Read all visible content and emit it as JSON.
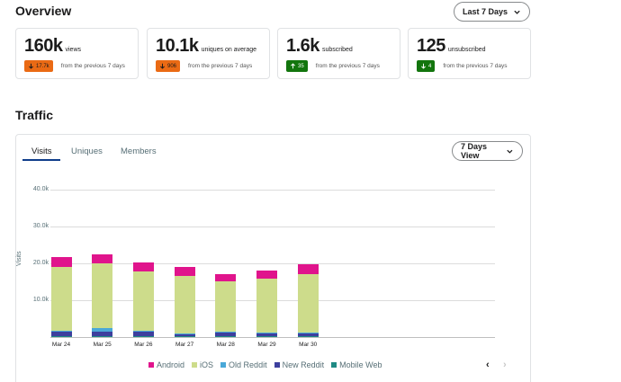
{
  "overview": {
    "title": "Overview",
    "range_select": "Last 7 Days",
    "cards": [
      {
        "value": "160k",
        "unit": "views",
        "delta": "17.7k",
        "trend": "down",
        "color": "orange",
        "from": "from the previous 7 days"
      },
      {
        "value": "10.1k",
        "unit": "uniques on average",
        "delta": "906",
        "trend": "down",
        "color": "orange",
        "from": "from the previous 7 days"
      },
      {
        "value": "1.6k",
        "unit": "subscribed",
        "delta": "35",
        "trend": "up",
        "color": "green",
        "from": "from the previous 7 days"
      },
      {
        "value": "125",
        "unit": "unsubscribed",
        "delta": "4",
        "trend": "down",
        "color": "green",
        "from": "from the previous 7 days"
      }
    ]
  },
  "traffic": {
    "title": "Traffic",
    "tabs": [
      "Visits",
      "Uniques",
      "Members"
    ],
    "active_tab": "Visits",
    "view_select": "7 Days View",
    "pager": {
      "prev_icon": "chevron-left-icon",
      "next_icon": "chevron-right-icon"
    }
  },
  "chart_data": {
    "type": "bar",
    "stacked": true,
    "title": "",
    "xlabel": "",
    "ylabel": "Visits",
    "ylim": [
      0,
      40000
    ],
    "yticks": [
      "10.0k",
      "20.0k",
      "30.0k",
      "40.0k"
    ],
    "grid": true,
    "legend_position": "bottom",
    "categories": [
      "Mar 24",
      "Mar 25",
      "Mar 26",
      "Mar 27",
      "Mar 28",
      "Mar 29",
      "Mar 30"
    ],
    "series": [
      {
        "name": "Mobile Web",
        "color": "#1f8a84",
        "values": [
          300,
          300,
          300,
          300,
          300,
          300,
          300
        ]
      },
      {
        "name": "New Reddit",
        "color": "#3d3f9e",
        "values": [
          1300,
          1200,
          1200,
          600,
          1100,
          900,
          700
        ]
      },
      {
        "name": "Old Reddit",
        "color": "#4aa8d8",
        "values": [
          200,
          1000,
          200,
          100,
          100,
          100,
          100
        ]
      },
      {
        "name": "iOS",
        "color": "#cddc8b",
        "values": [
          17200,
          17500,
          16100,
          15700,
          13600,
          14500,
          16000
        ]
      },
      {
        "name": "Android",
        "color": "#e0148c",
        "values": [
          2700,
          2400,
          2400,
          2400,
          2000,
          2200,
          2600
        ]
      }
    ],
    "legend_order": [
      "Android",
      "iOS",
      "Old Reddit",
      "New Reddit",
      "Mobile Web"
    ]
  }
}
